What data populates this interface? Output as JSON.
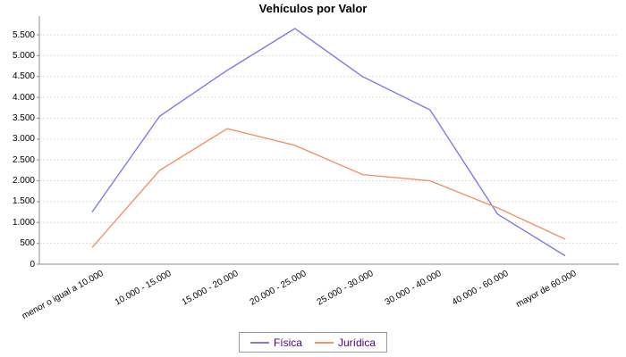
{
  "chart_data": {
    "type": "line",
    "title": "Vehículos por Valor",
    "categories": [
      "menor o igual a 10.000",
      "10.000 - 15.000",
      "15.000 - 20.000",
      "20.000 - 25.000",
      "25.000 - 30.000",
      "30.000 - 40.000",
      "40.000 - 60.000",
      "mayor de 60.000"
    ],
    "series": [
      {
        "name": "Física",
        "color": "#7C7CE8",
        "values": [
          1250,
          3550,
          4650,
          5650,
          4500,
          3700,
          1200,
          200
        ]
      },
      {
        "name": "Jurídica",
        "color": "#F09468",
        "values": [
          400,
          2250,
          3250,
          2850,
          2150,
          2000,
          1350,
          600
        ]
      }
    ],
    "ylim": [
      0,
      5950
    ],
    "yticks": [
      {
        "value": 0,
        "label": "0"
      },
      {
        "value": 500,
        "label": "500"
      },
      {
        "value": 1000,
        "label": "1.000"
      },
      {
        "value": 1500,
        "label": "1.500"
      },
      {
        "value": 2000,
        "label": "2.000"
      },
      {
        "value": 2500,
        "label": "2.500"
      },
      {
        "value": 3000,
        "label": "3.000"
      },
      {
        "value": 3500,
        "label": "3.500"
      },
      {
        "value": 4000,
        "label": "4.000"
      },
      {
        "value": 4500,
        "label": "4.500"
      },
      {
        "value": 5000,
        "label": "5.000"
      },
      {
        "value": 5500,
        "label": "5.500"
      }
    ],
    "xlabel": "",
    "ylabel": "",
    "grid": "horizontal-dashed",
    "legend_position": "bottom-center",
    "colors": {
      "axis": "#8c8c8c",
      "grid": "#dcdcdc",
      "tick_label": "#000000",
      "legend_text": "#4B0082",
      "background": "#ffffff"
    }
  }
}
